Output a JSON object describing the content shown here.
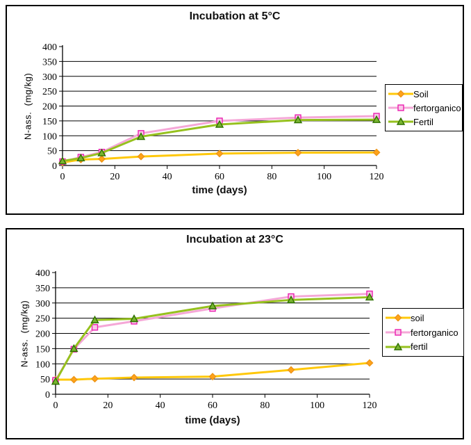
{
  "chart_data": [
    {
      "type": "line",
      "title": "Incubation at 5°C",
      "xlabel": "time (days)",
      "ylabel": "N-ass.  (mg/kg)",
      "xlim": [
        0,
        120
      ],
      "ylim": [
        0,
        400
      ],
      "xticks": [
        0,
        20,
        40,
        60,
        80,
        100,
        120
      ],
      "yticks": [
        0,
        50,
        100,
        150,
        200,
        250,
        300,
        350,
        400
      ],
      "grid": "horizontal",
      "legend_position": "right",
      "x": [
        0,
        7,
        15,
        30,
        60,
        90,
        120
      ],
      "series": [
        {
          "name": "Soil",
          "marker": "diamond",
          "line_color": "#FFC80A",
          "marker_fill": "#FFA31A",
          "marker_stroke": "#ED9415",
          "values": [
            10,
            20,
            22,
            30,
            40,
            43,
            44
          ]
        },
        {
          "name": "fertorganico",
          "marker": "square",
          "line_color": "#F5A7D7",
          "marker_fill": "#FAC7E7",
          "marker_stroke": "#EA1FB0",
          "values": [
            13,
            28,
            45,
            108,
            150,
            161,
            166
          ]
        },
        {
          "name": "Fertil",
          "marker": "triangle",
          "line_color": "#96C11E",
          "marker_fill": "#79B530",
          "marker_stroke": "#2F7000",
          "values": [
            15,
            25,
            42,
            97,
            138,
            153,
            154
          ]
        }
      ]
    },
    {
      "type": "line",
      "title": "Incubation at 23°C",
      "xlabel": "time (days)",
      "ylabel": "N-ass.  (mg/kg)",
      "xlim": [
        0,
        120
      ],
      "ylim": [
        0,
        400
      ],
      "xticks": [
        0,
        20,
        40,
        60,
        80,
        100,
        120
      ],
      "yticks": [
        0,
        50,
        100,
        150,
        200,
        250,
        300,
        350,
        400
      ],
      "grid": "horizontal",
      "legend_position": "right",
      "x": [
        0,
        7,
        15,
        30,
        60,
        90,
        120
      ],
      "series": [
        {
          "name": "soil",
          "marker": "diamond",
          "line_color": "#FFC80A",
          "marker_fill": "#FFA31A",
          "marker_stroke": "#ED9415",
          "values": [
            48,
            48,
            51,
            55,
            58,
            80,
            103
          ]
        },
        {
          "name": "fertorganico",
          "marker": "square",
          "line_color": "#F5A7D7",
          "marker_fill": "#FAC7E7",
          "marker_stroke": "#EA1FB0",
          "values": [
            46,
            148,
            220,
            240,
            282,
            321,
            330
          ]
        },
        {
          "name": "fertil",
          "marker": "triangle",
          "line_color": "#96C11E",
          "marker_fill": "#79B530",
          "marker_stroke": "#2F7000",
          "values": [
            42,
            150,
            244,
            248,
            290,
            310,
            319
          ]
        }
      ]
    }
  ]
}
